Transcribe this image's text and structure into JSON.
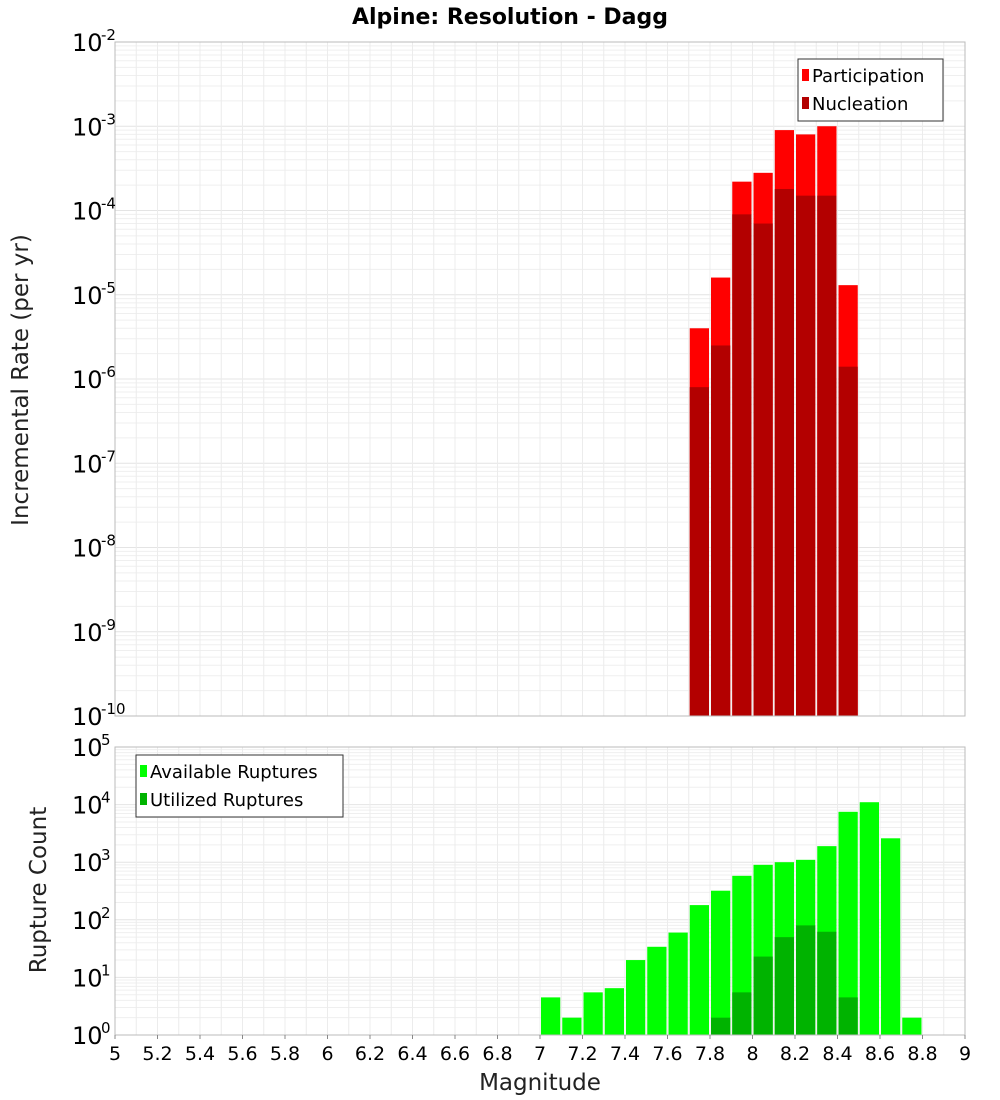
{
  "chart_data": [
    {
      "type": "bar",
      "title": "Alpine: Resolution - Dagg",
      "ylabel": "Incremental Rate (per yr)",
      "yscale": "log",
      "ylim": [
        1e-10,
        0.01
      ],
      "y_ticks": [
        {
          "base": "10",
          "exp": "-10",
          "value": 1e-10
        },
        {
          "base": "10",
          "exp": "-9",
          "value": 1e-09
        },
        {
          "base": "10",
          "exp": "-8",
          "value": 1e-08
        },
        {
          "base": "10",
          "exp": "-7",
          "value": 1e-07
        },
        {
          "base": "10",
          "exp": "-6",
          "value": 1e-06
        },
        {
          "base": "10",
          "exp": "-5",
          "value": 1e-05
        },
        {
          "base": "10",
          "exp": "-4",
          "value": 0.0001
        },
        {
          "base": "10",
          "exp": "-3",
          "value": 0.001
        },
        {
          "base": "10",
          "exp": "-2",
          "value": 0.01
        }
      ],
      "bin_width": 0.1,
      "legend": "top-right",
      "grid": true,
      "series": [
        {
          "name": "Participation",
          "color": "#ff0000",
          "x": [
            7.75,
            7.85,
            7.95,
            8.05,
            8.15,
            8.25,
            8.35,
            8.45
          ],
          "values": [
            4e-06,
            1.6e-05,
            0.00022,
            0.00028,
            0.0009,
            0.0008,
            0.001,
            1.3e-05
          ]
        },
        {
          "name": "Nucleation",
          "color": "#b30000",
          "x": [
            7.75,
            7.85,
            7.95,
            8.05,
            8.15,
            8.25,
            8.35,
            8.45
          ],
          "values": [
            8e-07,
            2.5e-06,
            9e-05,
            7e-05,
            0.00018,
            0.00015,
            0.00015,
            1.4e-06
          ]
        }
      ]
    },
    {
      "type": "bar",
      "xlabel": "Magnitude",
      "ylabel": "Rupture Count",
      "yscale": "log",
      "xlim": [
        5,
        9
      ],
      "ylim": [
        1,
        100000
      ],
      "x_ticks": [
        "5",
        "5.2",
        "5.4",
        "5.6",
        "5.8",
        "6",
        "6.2",
        "6.4",
        "6.6",
        "6.8",
        "7",
        "7.2",
        "7.4",
        "7.6",
        "7.8",
        "8",
        "8.2",
        "8.4",
        "8.6",
        "8.8",
        "9"
      ],
      "y_ticks": [
        {
          "base": "10",
          "exp": "0",
          "value": 1
        },
        {
          "base": "10",
          "exp": "1",
          "value": 10
        },
        {
          "base": "10",
          "exp": "2",
          "value": 100
        },
        {
          "base": "10",
          "exp": "3",
          "value": 1000
        },
        {
          "base": "10",
          "exp": "4",
          "value": 10000
        },
        {
          "base": "10",
          "exp": "5",
          "value": 100000
        }
      ],
      "bin_width": 0.1,
      "legend": "top-left",
      "grid": true,
      "series": [
        {
          "name": "Available Ruptures",
          "color": "#00ff00",
          "x": [
            7.05,
            7.15,
            7.25,
            7.35,
            7.45,
            7.55,
            7.65,
            7.75,
            7.85,
            7.95,
            8.05,
            8.15,
            8.25,
            8.35,
            8.45,
            8.55,
            8.65,
            8.75
          ],
          "values": [
            4.5,
            2,
            5.5,
            6.5,
            20,
            34,
            60,
            180,
            320,
            580,
            900,
            1000,
            1100,
            1900,
            7500,
            11000,
            2600,
            2
          ]
        },
        {
          "name": "Utilized Ruptures",
          "color": "#00b300",
          "x": [
            7.75,
            7.85,
            7.95,
            8.05,
            8.15,
            8.25,
            8.35,
            8.45
          ],
          "values": [
            1,
            2,
            5.5,
            23,
            50,
            80,
            62,
            4.5
          ]
        }
      ]
    }
  ]
}
